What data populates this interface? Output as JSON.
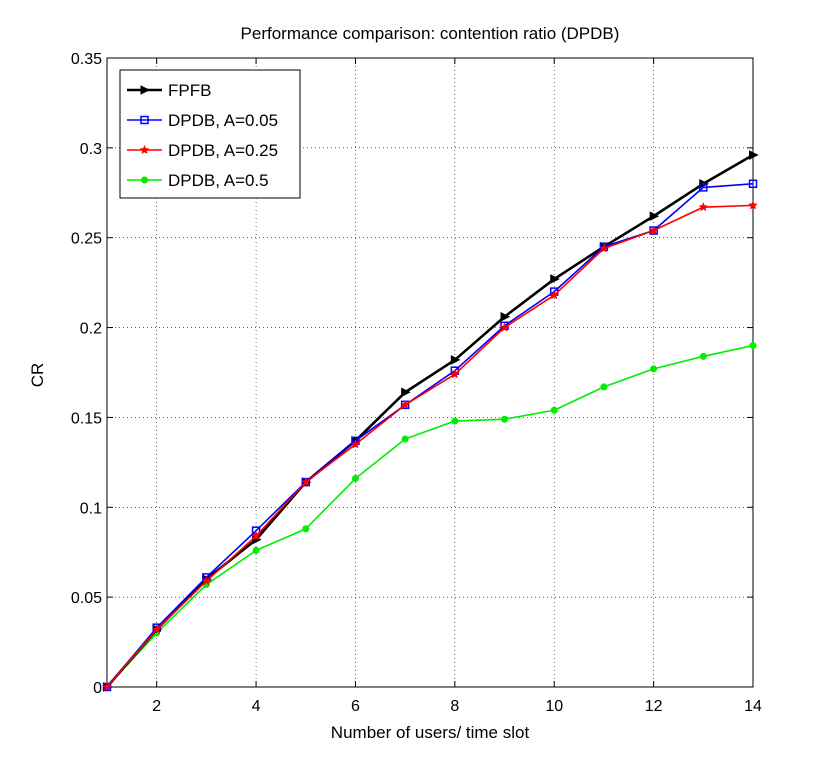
{
  "chart_data": {
    "type": "line",
    "title": "Performance comparison: contention ratio (DPDB)",
    "xlabel": "Number of users/ time slot",
    "ylabel": "CR",
    "xlim": [
      1,
      14
    ],
    "ylim": [
      0,
      0.35
    ],
    "xticks": [
      2,
      4,
      6,
      8,
      10,
      12,
      14
    ],
    "xtick_labels": [
      "2",
      "4",
      "6",
      "8",
      "10",
      "12",
      "14"
    ],
    "yticks": [
      0,
      0.05,
      0.1,
      0.15,
      0.2,
      0.25,
      0.3,
      0.35
    ],
    "ytick_labels": [
      "0",
      "0.05",
      "0.1",
      "0.15",
      "0.2",
      "0.25",
      "0.3",
      "0.35"
    ],
    "grid": "dotted",
    "legend_position": "top-left",
    "x": [
      1,
      2,
      3,
      4,
      5,
      6,
      7,
      8,
      9,
      10,
      11,
      12,
      13,
      14
    ],
    "series": [
      {
        "name": "FPFB",
        "color": "#000000",
        "marker": "triangle-right",
        "values": [
          0.0,
          0.032,
          0.06,
          0.082,
          0.114,
          0.137,
          0.164,
          0.182,
          0.206,
          0.227,
          0.245,
          0.262,
          0.28,
          0.296
        ]
      },
      {
        "name": "DPDB, A=0.05",
        "color": "#0000ff",
        "marker": "square",
        "values": [
          0.0,
          0.033,
          0.061,
          0.087,
          0.114,
          0.137,
          0.157,
          0.176,
          0.201,
          0.22,
          0.245,
          0.254,
          0.278,
          0.28
        ]
      },
      {
        "name": "DPDB, A=0.25",
        "color": "#ff0000",
        "marker": "star",
        "values": [
          0.0,
          0.032,
          0.059,
          0.084,
          0.114,
          0.135,
          0.157,
          0.174,
          0.2,
          0.218,
          0.244,
          0.254,
          0.267,
          0.268
        ]
      },
      {
        "name": "DPDB, A=0.5",
        "color": "#00ee00",
        "marker": "circle",
        "values": [
          0.0,
          0.03,
          0.057,
          0.076,
          0.088,
          0.116,
          0.138,
          0.148,
          0.149,
          0.154,
          0.167,
          0.177,
          0.184,
          0.19
        ]
      }
    ]
  }
}
